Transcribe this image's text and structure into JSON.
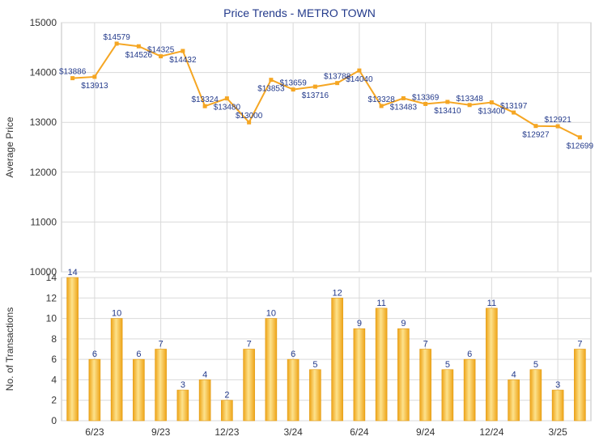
{
  "chart_data": [
    {
      "type": "line",
      "title": "Price Trends - METRO TOWN",
      "ylabel": "Average Price",
      "xlabel": "",
      "ylim": [
        10000,
        15000
      ],
      "yticks": [
        10000,
        11000,
        12000,
        13000,
        14000,
        15000
      ],
      "x_tick_labels": [
        "6/23",
        "9/23",
        "12/23",
        "3/24",
        "6/24",
        "9/24",
        "12/24",
        "3/25"
      ],
      "point_labels": [
        "$13886",
        "$13913",
        "$14579",
        "$14526",
        "$14325",
        "$14432",
        "$13324",
        "$13480",
        "$13000",
        "$13853",
        "$13659",
        "$13716",
        "$13788",
        "$14040",
        "$13328",
        "$13483",
        "$13369",
        "$13410",
        "$13348",
        "$13400",
        "$13197",
        "$12927",
        "$12921",
        "$12699"
      ],
      "values": [
        13886,
        13913,
        14579,
        14526,
        14325,
        14432,
        13324,
        13480,
        13000,
        13853,
        13659,
        13716,
        13788,
        14040,
        13328,
        13483,
        13369,
        13410,
        13348,
        13400,
        13197,
        12927,
        12921,
        12699
      ],
      "grid": true,
      "colors": {
        "line": "#f5a623",
        "axis_text": "#333333",
        "title": "#233a8b",
        "label": "#233a8b",
        "grid": "#d9d9d9"
      }
    },
    {
      "type": "bar",
      "title": "",
      "ylabel": "No. of Transactions",
      "xlabel": "",
      "ylim": [
        0,
        14
      ],
      "yticks": [
        0,
        2,
        4,
        6,
        8,
        10,
        12,
        14
      ],
      "x_tick_labels": [
        "6/23",
        "9/23",
        "12/23",
        "3/24",
        "6/24",
        "9/24",
        "12/24",
        "3/25"
      ],
      "values": [
        14,
        6,
        10,
        6,
        7,
        3,
        4,
        2,
        7,
        10,
        6,
        5,
        12,
        9,
        11,
        9,
        7,
        5,
        6,
        11,
        4,
        5,
        3,
        7
      ],
      "grid": true,
      "colors": {
        "bar_light": "#fde28c",
        "bar_dark": "#eea418",
        "label": "#233a8b",
        "grid": "#d9d9d9"
      }
    }
  ]
}
